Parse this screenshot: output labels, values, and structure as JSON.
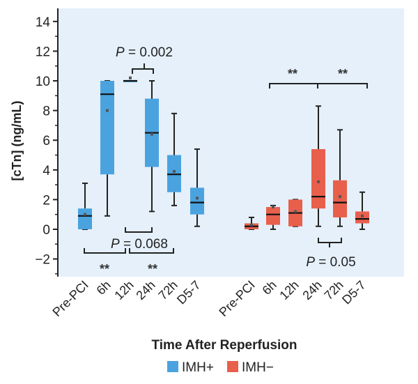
{
  "chart_data": {
    "type": "box",
    "title": "",
    "xlabel": "Time After Reperfusion",
    "ylabel": "[cTn] (ng/mL)",
    "ylim": [
      -3,
      15
    ],
    "yticks": [
      -2,
      0,
      2,
      4,
      6,
      8,
      10,
      12,
      14
    ],
    "categories": [
      "Pre-PCI",
      "6h",
      "12h",
      "24h",
      "72h",
      "D5-7"
    ],
    "grid": false,
    "legend_position": "bottom-center",
    "series": [
      {
        "name": "IMH+",
        "color": "#4aa3df",
        "boxes": [
          {
            "category": "Pre-PCI",
            "min": 0,
            "q1": 0,
            "median": 0.9,
            "q3": 1.4,
            "max": 3.1,
            "mean": 1.0
          },
          {
            "category": "6h",
            "min": 0.9,
            "q1": 3.7,
            "median": 9.1,
            "q3": 10.0,
            "max": 10.0,
            "mean": 8.0
          },
          {
            "category": "12h",
            "min": 10.0,
            "q1": 10.0,
            "median": 10.0,
            "q3": 10.0,
            "max": 10.0,
            "mean": 10.2
          },
          {
            "category": "24h",
            "min": 1.2,
            "q1": 4.2,
            "median": 6.5,
            "q3": 8.8,
            "max": 10.0,
            "mean": 6.4
          },
          {
            "category": "72h",
            "min": 1.6,
            "q1": 2.5,
            "median": 3.7,
            "q3": 5.0,
            "max": 7.8,
            "mean": 3.9
          },
          {
            "category": "D5-7",
            "min": 0.2,
            "q1": 1.0,
            "median": 1.8,
            "q3": 2.8,
            "max": 5.4,
            "mean": 2.1
          }
        ]
      },
      {
        "name": "IMH−",
        "color": "#e8604c",
        "boxes": [
          {
            "category": "Pre-PCI",
            "min": 0,
            "q1": 0,
            "median": 0.2,
            "q3": 0.4,
            "max": 0.8,
            "mean": 0.3
          },
          {
            "category": "6h",
            "min": 0,
            "q1": 0.3,
            "median": 1.0,
            "q3": 1.5,
            "max": 1.6,
            "mean": 1.5
          },
          {
            "category": "12h",
            "min": 0.2,
            "q1": 0.2,
            "median": 1.1,
            "q3": 2.0,
            "max": 2.0,
            "mean": 1.2
          },
          {
            "category": "24h",
            "min": 0.2,
            "q1": 1.4,
            "median": 2.2,
            "q3": 5.4,
            "max": 8.3,
            "mean": 3.2
          },
          {
            "category": "72h",
            "min": 0.2,
            "q1": 0.8,
            "median": 1.8,
            "q3": 3.3,
            "max": 6.7,
            "mean": 2.2
          },
          {
            "category": "D5-7",
            "min": 0,
            "q1": 0.4,
            "median": 0.7,
            "q3": 1.2,
            "max": 2.5,
            "mean": 0.9
          }
        ]
      }
    ],
    "annotations": [
      {
        "text_italic": "P",
        "text_rest": " = 0.002",
        "kind": "pvalue"
      },
      {
        "text_italic": "P",
        "text_rest": " = 0.068",
        "kind": "pvalue"
      },
      {
        "text_italic": "P",
        "text_rest": " = 0.05",
        "kind": "pvalue"
      },
      {
        "text": "**",
        "kind": "stars"
      }
    ]
  },
  "legend": {
    "items": [
      {
        "label": "IMH+",
        "color": "#4aa3df"
      },
      {
        "label": "IMH−",
        "color": "#e8604c"
      }
    ]
  },
  "colors": {
    "panel_bg": "#e5f0fa",
    "axis": "#222222",
    "mean_marker": "#555555"
  }
}
